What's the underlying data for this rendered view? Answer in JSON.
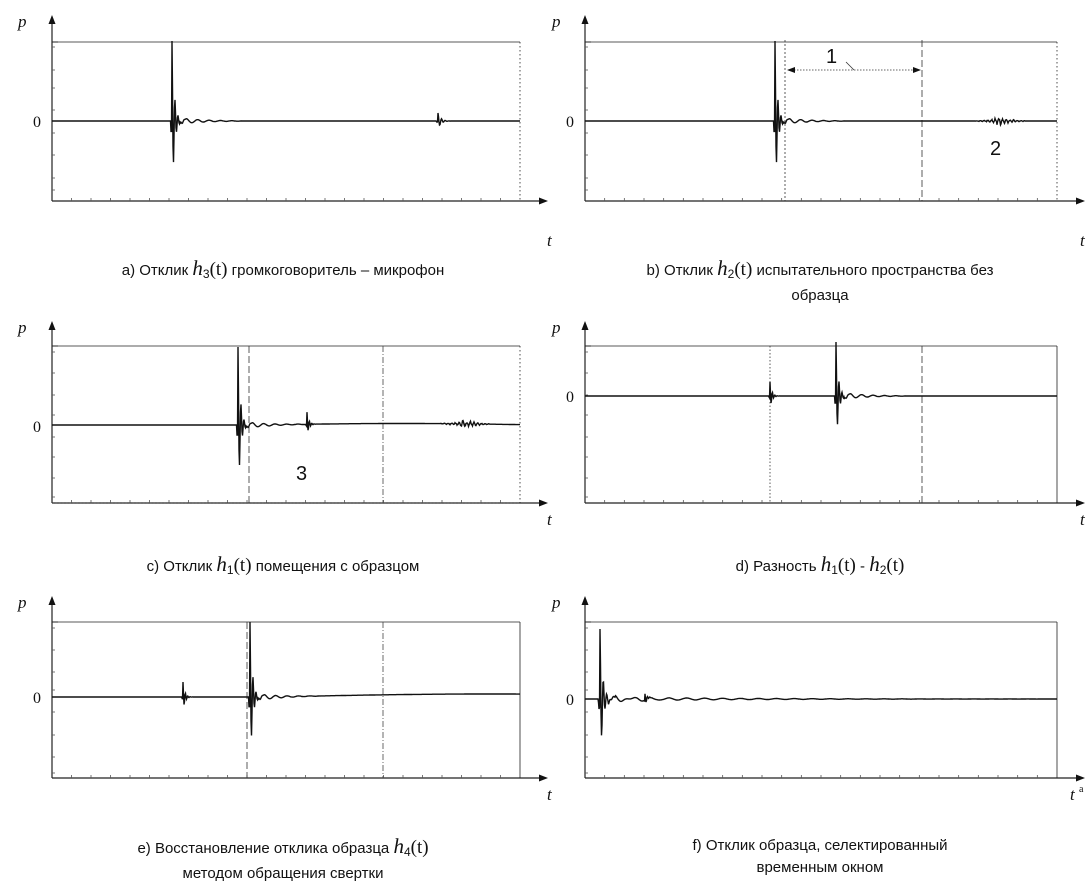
{
  "panels": [
    {
      "id": "a",
      "p_label": "p",
      "t_label": "t",
      "zero_label": "0",
      "caption": {
        "prefix": "a) Отклик",
        "func": "h",
        "sub": "3",
        "arg": "(t)",
        "suffix": "громкоговоритель – микрофон"
      }
    },
    {
      "id": "b",
      "p_label": "p",
      "t_label": "t",
      "zero_label": "0",
      "markers": [
        "1",
        "2"
      ],
      "caption": {
        "prefix": "b) Отклик",
        "func": "h",
        "sub": "2",
        "arg": "(t)",
        "suffix": "испытательного пространства без",
        "line2": "образца"
      }
    },
    {
      "id": "c",
      "p_label": "p",
      "t_label": "t",
      "zero_label": "0",
      "markers": [
        "3"
      ],
      "caption": {
        "prefix": "c)  Отклик",
        "func": "h",
        "sub": "1",
        "arg": "(t)",
        "suffix": "помещения с образцом"
      }
    },
    {
      "id": "d",
      "p_label": "p",
      "t_label": "t",
      "zero_label": "0",
      "caption": {
        "prefix": "d) Разность",
        "func": "h",
        "sub": "1",
        "arg": "(t)",
        "mid": "-",
        "func2": "h",
        "sub2": "2",
        "arg2": "(t)"
      }
    },
    {
      "id": "e",
      "p_label": "p",
      "t_label": "t",
      "zero_label": "0",
      "caption": {
        "prefix": "e) Восстановление отклика образца",
        "func": "h",
        "sub": "4",
        "arg": "(t)",
        "line2": "методом обращения свертки"
      }
    },
    {
      "id": "f",
      "p_label": "p",
      "t_label": "t",
      "t_superscript": "a",
      "zero_label": "0",
      "caption": {
        "prefix": "f) Отклик образца, селектированный",
        "line2": "временным окном"
      }
    }
  ]
}
